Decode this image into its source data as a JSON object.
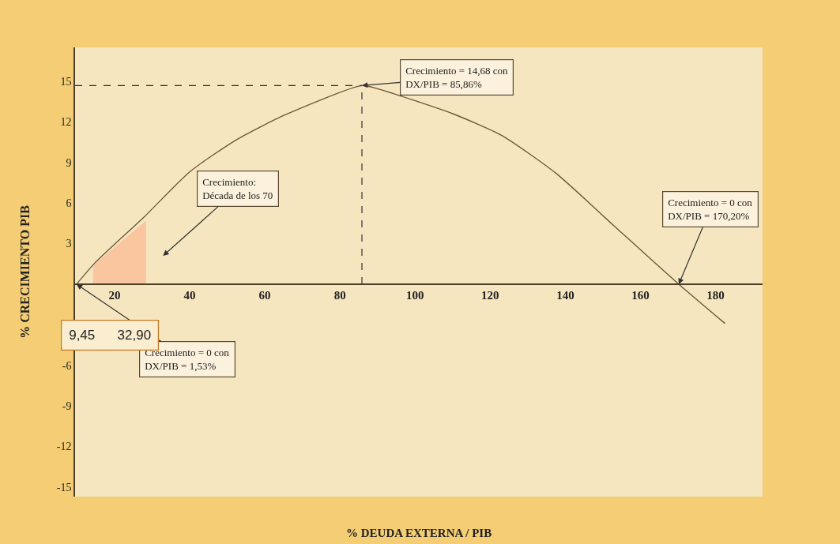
{
  "chart_data": {
    "type": "line",
    "xlabel": "% DEUDA EXTERNA / PIB",
    "ylabel": "% CRECIMIENTO PIB",
    "x": [
      9.9,
      14.7,
      28,
      40,
      52.6,
      65.3,
      85.86,
      90.5,
      110,
      123,
      137.5,
      153,
      170.2,
      182.5
    ],
    "series": [
      {
        "type": "area",
        "color": "#f9c6a0",
        "x": [
          14.3,
          28.4
        ],
        "values": [
          1.4,
          4.7
        ]
      },
      {
        "color": "#6b5a3a",
        "values": [
          0,
          1.55,
          5.0,
          8.3,
          10.7,
          12.5,
          14.68,
          14.4,
          12.6,
          11.0,
          8.2,
          4.3,
          0,
          -2.9
        ]
      }
    ],
    "xlim": [
      9.5,
      192.5
    ],
    "ylim": [
      -15.7,
      17.5
    ],
    "xticks": [
      20,
      40,
      60,
      80,
      100,
      120,
      140,
      160,
      180
    ],
    "yticks": [
      -15,
      -12,
      -9,
      -6,
      3,
      6,
      9,
      12,
      15
    ],
    "grid": false,
    "marker": "none",
    "line_style": "solid",
    "ref_lines": [
      {
        "axis": "y",
        "value": 14.68,
        "line_style": "dashed",
        "color": "#333333"
      },
      {
        "axis": "x",
        "value": 85.86,
        "line_style": "dashed",
        "color": "#333333"
      }
    ],
    "annotations": [
      {
        "text": "Crecimiento = 14,68 con\nDX/PIB = 85,86%",
        "x": 85.86,
        "y": 14.68
      },
      "Crecimiento:\nDécada de los 70",
      {
        "text": "Crecimiento = 0 con\nDX/PIB = 170,20%",
        "x": 170.2,
        "y": 0
      },
      {
        "text": "Crecimiento = 0 con\nDX/PIB = 1,53%",
        "x": 9.9,
        "y": 0
      },
      "9,45      32,90"
    ]
  }
}
